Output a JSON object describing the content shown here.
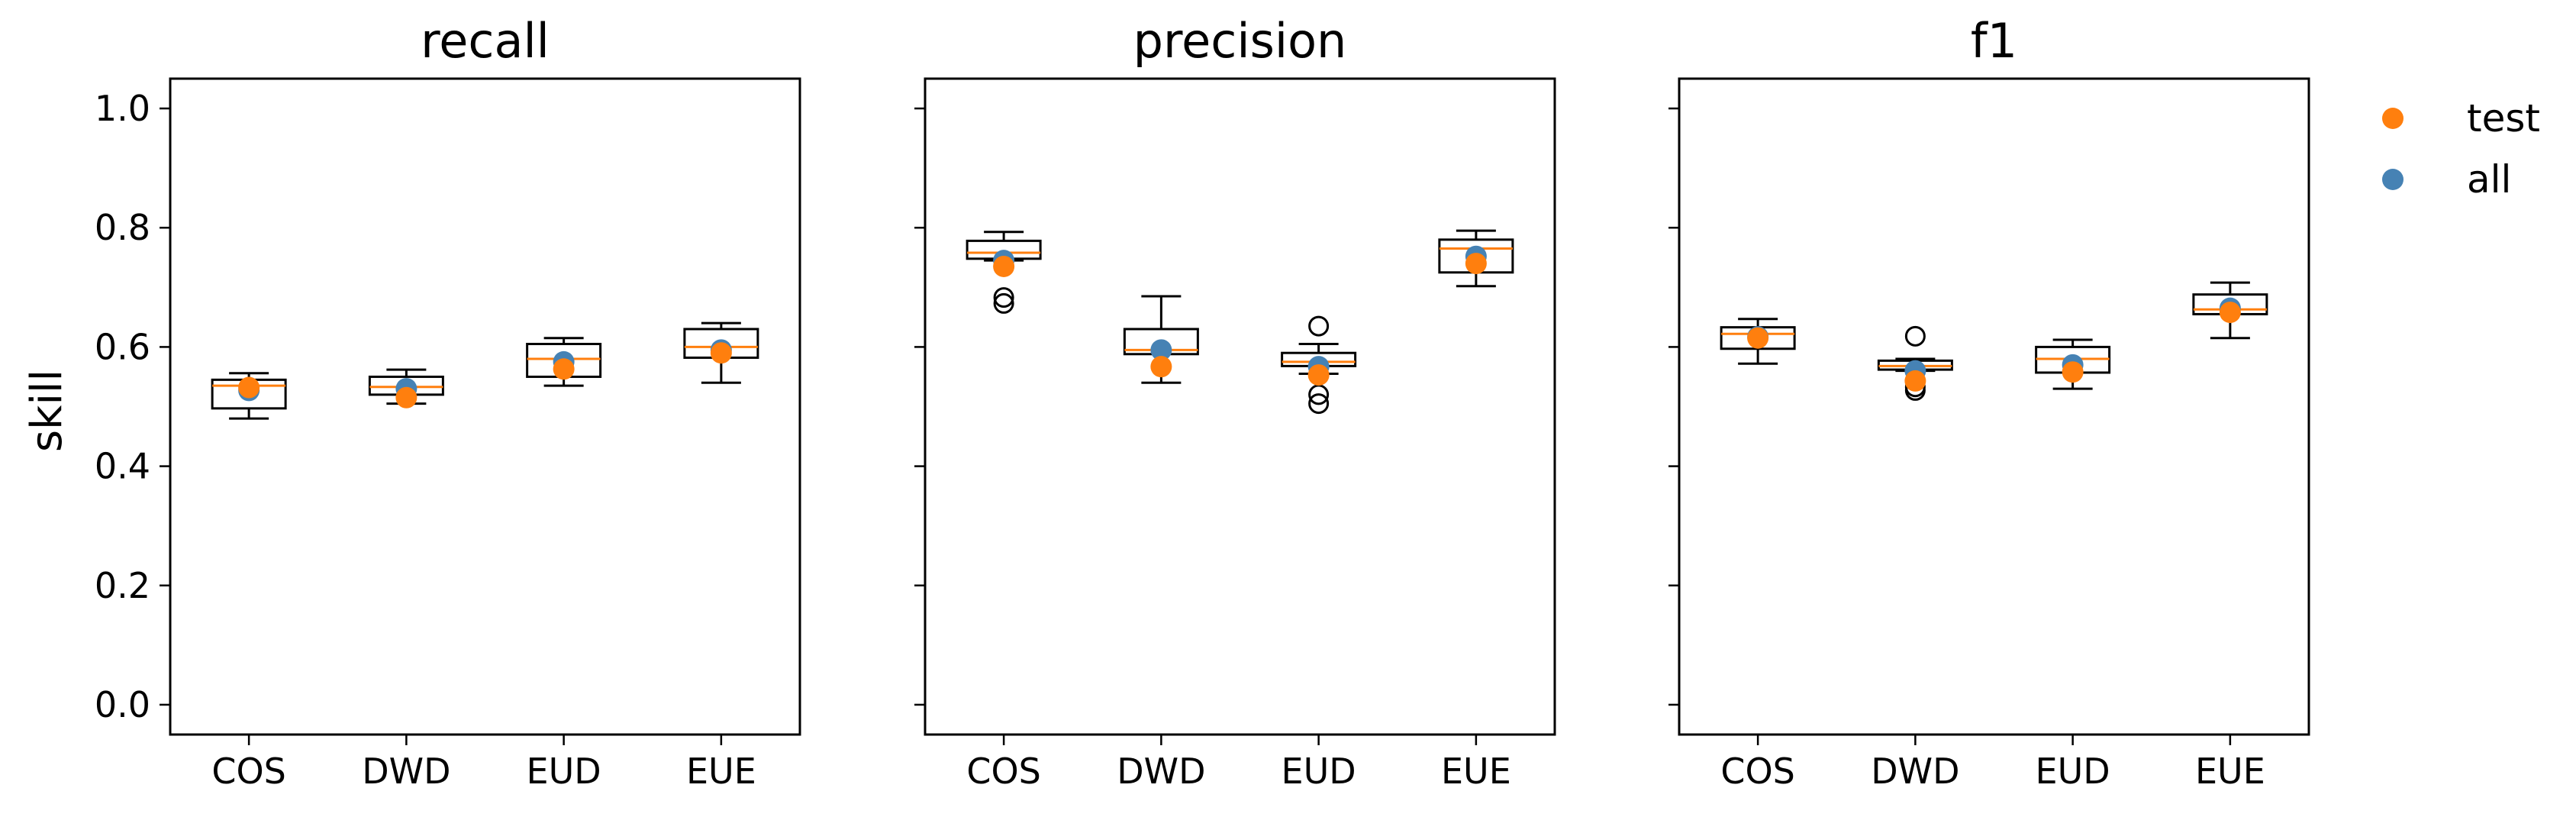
{
  "chart_data": {
    "type": "box",
    "ylabel": "skill",
    "ylim": [
      -0.05,
      1.05
    ],
    "yticks": [
      0.0,
      0.2,
      0.4,
      0.6,
      0.8,
      1.0
    ],
    "ytick_labels": [
      "0.0",
      "0.2",
      "0.4",
      "0.6",
      "0.8",
      "1.0"
    ],
    "categories": [
      "COS",
      "DWD",
      "EUD",
      "EUE"
    ],
    "legend": {
      "placement": "outside-right",
      "entries": [
        {
          "label": "test",
          "color": "#ff7f0e"
        },
        {
          "label": "all",
          "color": "#4682b4"
        }
      ]
    },
    "colors": {
      "median": "#ff7f0e",
      "test": "#ff7f0e",
      "all": "#4682b4",
      "box": "#000000"
    },
    "panels": [
      {
        "title": "recall",
        "boxes": [
          {
            "category": "COS",
            "whislo": 0.48,
            "q1": 0.497,
            "med": 0.535,
            "q3": 0.545,
            "whishi": 0.556,
            "fliers": [],
            "test": 0.532,
            "all": 0.527
          },
          {
            "category": "DWD",
            "whislo": 0.505,
            "q1": 0.52,
            "med": 0.533,
            "q3": 0.55,
            "whishi": 0.562,
            "fliers": [],
            "test": 0.515,
            "all": 0.53
          },
          {
            "category": "EUD",
            "whislo": 0.535,
            "q1": 0.55,
            "med": 0.58,
            "q3": 0.605,
            "whishi": 0.615,
            "fliers": [],
            "test": 0.563,
            "all": 0.575
          },
          {
            "category": "EUE",
            "whislo": 0.54,
            "q1": 0.582,
            "med": 0.6,
            "q3": 0.63,
            "whishi": 0.64,
            "fliers": [],
            "test": 0.59,
            "all": 0.595
          }
        ]
      },
      {
        "title": "precision",
        "boxes": [
          {
            "category": "COS",
            "whislo": 0.745,
            "q1": 0.748,
            "med": 0.758,
            "q3": 0.778,
            "whishi": 0.793,
            "fliers": [
              0.683,
              0.673
            ],
            "test": 0.735,
            "all": 0.745
          },
          {
            "category": "DWD",
            "whislo": 0.54,
            "q1": 0.588,
            "med": 0.595,
            "q3": 0.63,
            "whishi": 0.685,
            "fliers": [],
            "test": 0.567,
            "all": 0.595
          },
          {
            "category": "EUD",
            "whislo": 0.555,
            "q1": 0.568,
            "med": 0.575,
            "q3": 0.59,
            "whishi": 0.605,
            "fliers": [
              0.635,
              0.52,
              0.505
            ],
            "test": 0.553,
            "all": 0.567
          },
          {
            "category": "EUE",
            "whislo": 0.702,
            "q1": 0.725,
            "med": 0.765,
            "q3": 0.78,
            "whishi": 0.795,
            "fliers": [],
            "test": 0.74,
            "all": 0.752
          }
        ]
      },
      {
        "title": "f1",
        "boxes": [
          {
            "category": "COS",
            "whislo": 0.572,
            "q1": 0.597,
            "med": 0.622,
            "q3": 0.633,
            "whishi": 0.647,
            "fliers": [],
            "test": 0.615,
            "all": 0.617
          },
          {
            "category": "DWD",
            "whislo": 0.56,
            "q1": 0.562,
            "med": 0.568,
            "q3": 0.577,
            "whishi": 0.58,
            "fliers": [
              0.618,
              0.533,
              0.527
            ],
            "test": 0.543,
            "all": 0.56
          },
          {
            "category": "EUD",
            "whislo": 0.53,
            "q1": 0.557,
            "med": 0.58,
            "q3": 0.6,
            "whishi": 0.612,
            "fliers": [],
            "test": 0.558,
            "all": 0.57
          },
          {
            "category": "EUE",
            "whislo": 0.615,
            "q1": 0.655,
            "med": 0.663,
            "q3": 0.688,
            "whishi": 0.708,
            "fliers": [],
            "test": 0.658,
            "all": 0.665
          }
        ]
      }
    ]
  }
}
